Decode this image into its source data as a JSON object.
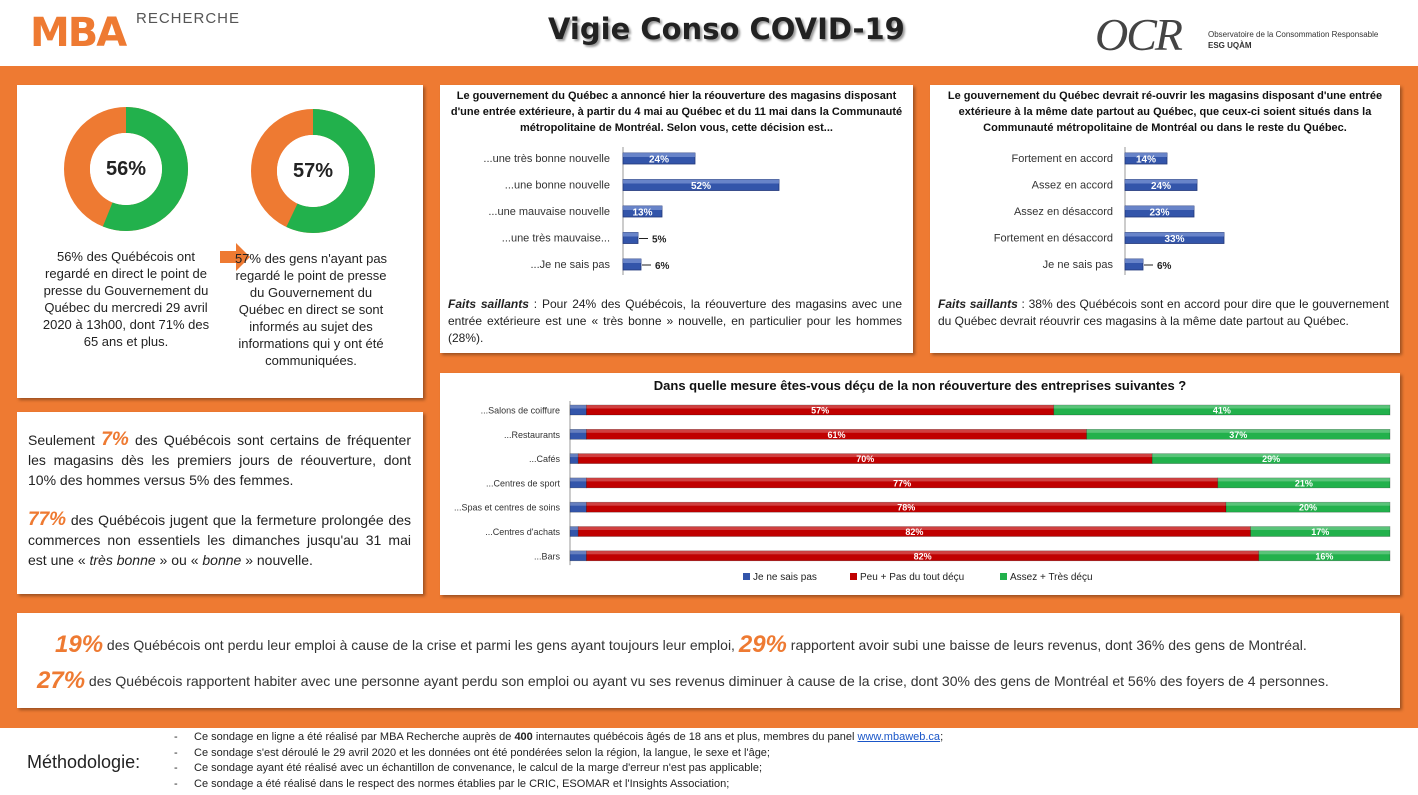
{
  "header": {
    "mba_logo": "MBA",
    "mba_logo_sub": "RECHERCHE",
    "title": "Vigie Conso COVID-19",
    "ocr_logo": "OCR",
    "ocr_sub1": "Observatoire de la Consommation Responsable",
    "ocr_sub2": "ESG UQÀM"
  },
  "colors": {
    "orange": "#ee7a32",
    "green": "#22b14c",
    "red": "#c00000",
    "blue": "#3355aa"
  },
  "donuts": [
    {
      "value": 56,
      "label": "56%",
      "desc": "56% des Québécois ont regardé en direct le point de presse du Gouvernement du Québec du mercredi 29 avril 2020 à 13h00, dont 71% des 65 ans et plus."
    },
    {
      "value": 57,
      "label": "57%",
      "desc": "57% des gens n'ayant pas regardé le point de presse du Gouvernement du Québec en direct se sont informés au sujet des informations qui y ont été communiquées."
    }
  ],
  "arrow_icon": "right-arrow-icon",
  "facts_panel": {
    "p1_pre": "Seulement ",
    "p1_big": "7%",
    "p1_post": " des Québécois sont certains de fréquenter les magasins dès les premiers jours de réouverture, dont 10% des hommes versus 5% des femmes.",
    "p2_big": "77%",
    "p2_a": " des Québécois jugent que la fermeture prolongée des commerces non essentiels les dimanches jusqu'au 31 mai est une « ",
    "p2_i1": "très bonne",
    "p2_b": " » ou « ",
    "p2_i2": "bonne",
    "p2_c": " » nouvelle."
  },
  "chart_data": [
    {
      "type": "bar",
      "orientation": "horizontal",
      "title": "Le gouvernement du Québec a annoncé hier la réouverture des magasins disposant d'une entrée extérieure, à partir du 4 mai au Québec et du 11 mai dans la Communauté métropolitaine de Montréal. Selon vous, cette décision est...",
      "categories": [
        "...une très bonne nouvelle",
        "...une bonne nouvelle",
        "...une mauvaise nouvelle",
        "...une très mauvaise...",
        "...Je ne sais pas"
      ],
      "values": [
        24,
        52,
        13,
        5,
        6
      ],
      "value_labels": [
        "24%",
        "52%",
        "13%",
        "5%",
        "6%"
      ],
      "xlim": [
        0,
        100
      ],
      "faits_label": "Faits saillants",
      "faits_text": " : Pour 24% des Québécois, la réouverture des magasins avec une entrée extérieure est une « très bonne » nouvelle, en particulier pour les hommes (28%)."
    },
    {
      "type": "bar",
      "orientation": "horizontal",
      "title": "Le gouvernement du Québec devrait ré-ouvrir les magasins disposant d'une entrée extérieure à la même date partout au Québec, que ceux-ci soient situés dans la Communauté métropolitaine de Montréal ou dans le reste du Québec.",
      "categories": [
        "Fortement en accord",
        "Assez en accord",
        "Assez en désaccord",
        "Fortement en désaccord",
        "Je ne sais pas"
      ],
      "values": [
        14,
        24,
        23,
        33,
        6
      ],
      "value_labels": [
        "14%",
        "24%",
        "23%",
        "33%",
        "6%"
      ],
      "xlim": [
        0,
        100
      ],
      "faits_label": "Faits saillants",
      "faits_text": " : 38% des Québécois sont en accord pour dire que le gouvernement du Québec devrait réouvrir ces magasins à la même date partout au Québec."
    },
    {
      "type": "bar",
      "orientation": "horizontal",
      "stacked": true,
      "title": "Dans quelle mesure êtes-vous déçu de la non réouverture des entreprises suivantes ?",
      "categories": [
        "...Salons de coiffure",
        "...Restaurants",
        "...Cafés",
        "...Centres de sport",
        "...Spas et centres de soins",
        "...Centres d'achats",
        "...Bars"
      ],
      "series": [
        {
          "name": "Je ne sais pas",
          "values": [
            2,
            2,
            1,
            2,
            2,
            1,
            2
          ],
          "color": "#3355aa"
        },
        {
          "name": "Peu + Pas du tout déçu",
          "values": [
            57,
            61,
            70,
            77,
            78,
            82,
            82
          ],
          "labels": [
            "57%",
            "61%",
            "70%",
            "77%",
            "78%",
            "82%",
            "82%"
          ],
          "color": "#c00000"
        },
        {
          "name": "Assez + Très déçu",
          "values": [
            41,
            37,
            29,
            21,
            20,
            17,
            16
          ],
          "labels": [
            "41%",
            "37%",
            "29%",
            "21%",
            "20%",
            "17%",
            "16%"
          ],
          "color": "#22b14c"
        }
      ],
      "xlim": [
        0,
        100
      ],
      "legend": "bottom"
    }
  ],
  "bottom_panel": {
    "a_big": "19%",
    "a_text": " des Québécois ont perdu leur emploi à cause de la crise et parmi les gens ayant toujours leur emploi, ",
    "b_big": "29%",
    "b_text": " rapportent avoir subi une baisse de leurs revenus, dont 36% des gens de Montréal.",
    "c_big": "27%",
    "c_text": " des Québécois rapportent habiter avec une personne ayant perdu son emploi ou ayant vu ses revenus diminuer à cause de la crise, dont 30% des gens de Montréal et 56% des foyers de 4 personnes."
  },
  "methodology": {
    "label": "Méthodologie:",
    "item1_a": "Ce sondage en ligne a été réalisé par MBA Recherche auprès de ",
    "item1_b": "400",
    "item1_c": " internautes québécois âgés de 18 ans et plus, membres du panel ",
    "item1_link": "www.mbaweb.ca",
    "item1_d": ";",
    "item2": "Ce sondage s'est déroulé le 29 avril 2020 et les données ont été pondérées selon la région, la langue, le sexe et l'âge;",
    "item3": "Ce sondage ayant été réalisé avec un échantillon de convenance, le calcul de la marge d'erreur n'est pas applicable;",
    "item4": "Ce sondage a été réalisé dans le respect des normes établies par le CRIC, ESOMAR et l'Insights Association;"
  }
}
